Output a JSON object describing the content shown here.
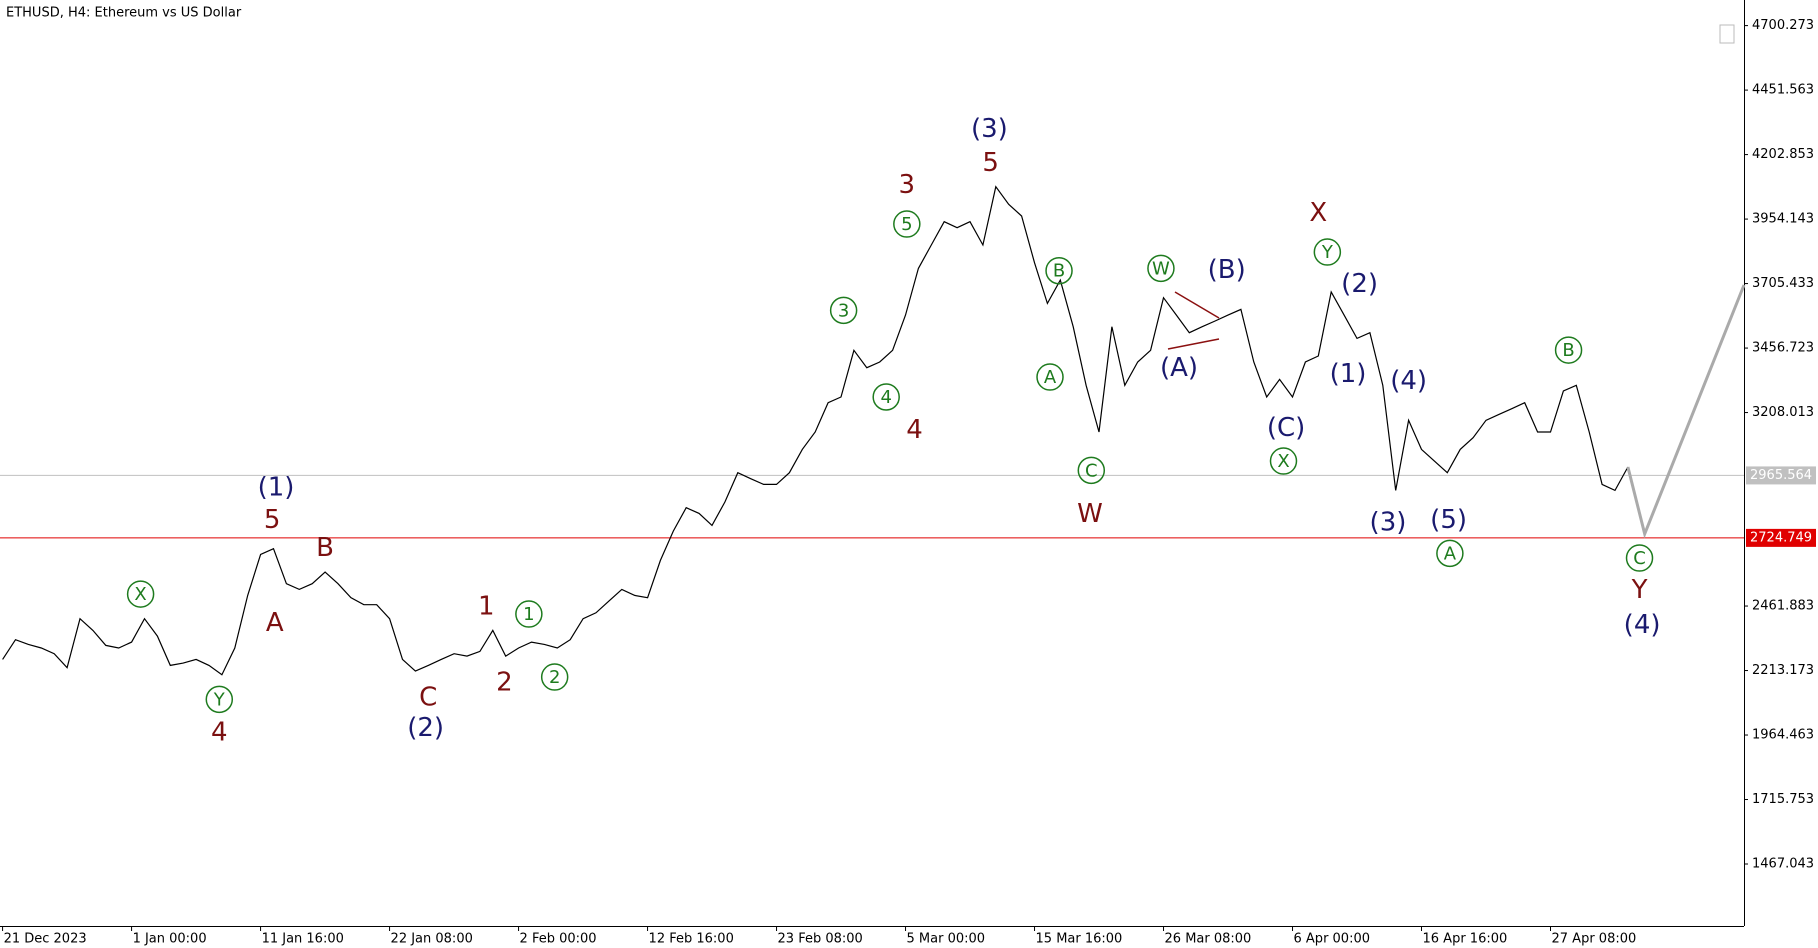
{
  "chart_data": {
    "type": "line",
    "title": "ETHUSD, H4:  Ethereum vs US Dollar",
    "xlim": [
      -0.02,
      13.5
    ],
    "xticks": [
      {
        "value": 0,
        "label": "21 Dec 2023"
      },
      {
        "value": 1,
        "label": "1 Jan 00:00"
      },
      {
        "value": 2,
        "label": "11 Jan 16:00"
      },
      {
        "value": 3,
        "label": "22 Jan 08:00"
      },
      {
        "value": 4,
        "label": "2 Feb 00:00"
      },
      {
        "value": 5,
        "label": "12 Feb 16:00"
      },
      {
        "value": 6,
        "label": "23 Feb 08:00"
      },
      {
        "value": 7,
        "label": "5 Mar 00:00"
      },
      {
        "value": 8,
        "label": "15 Mar 16:00"
      },
      {
        "value": 9,
        "label": "26 Mar 08:00"
      },
      {
        "value": 10,
        "label": "6 Apr 00:00"
      },
      {
        "value": 11,
        "label": "16 Apr 16:00"
      },
      {
        "value": 12,
        "label": "27 Apr 08:00"
      }
    ],
    "ylim": [
      1228,
      4799
    ],
    "yticks": [
      4700.273,
      4451.563,
      4202.853,
      3954.143,
      3705.433,
      3456.723,
      3208.013,
      2461.883,
      2213.173,
      1964.463,
      1715.753,
      1467.043
    ],
    "price_lines": [
      {
        "value": 2965.564,
        "color": "#c0c0c0"
      },
      {
        "value": 2724.749,
        "color": "#e00000"
      }
    ],
    "x": [
      0,
      0.1,
      0.2,
      0.3,
      0.4,
      0.5,
      0.6,
      0.7,
      0.8,
      0.9,
      1,
      1.1,
      1.2,
      1.3,
      1.4,
      1.5,
      1.6,
      1.7,
      1.8,
      1.9,
      2,
      2.1,
      2.2,
      2.3,
      2.4,
      2.5,
      2.6,
      2.7,
      2.8,
      2.9,
      3,
      3.1,
      3.2,
      3.3,
      3.4,
      3.5,
      3.6,
      3.7,
      3.8,
      3.9,
      4,
      4.1,
      4.2,
      4.3,
      4.4,
      4.5,
      4.6,
      4.7,
      4.8,
      4.9,
      5,
      5.1,
      5.2,
      5.3,
      5.4,
      5.5,
      5.6,
      5.7,
      5.8,
      5.9,
      6,
      6.1,
      6.2,
      6.3,
      6.4,
      6.5,
      6.6,
      6.7,
      6.8,
      6.9,
      7,
      7.1,
      7.2,
      7.3,
      7.4,
      7.5,
      7.6,
      7.7,
      7.8,
      7.9,
      8,
      8.1,
      8.2,
      8.3,
      8.4,
      8.5,
      8.6,
      8.7,
      8.8,
      8.9,
      9,
      9.1,
      9.2,
      9.3,
      9.4,
      9.5,
      9.6,
      9.7,
      9.8,
      9.9,
      10,
      10.1,
      10.2,
      10.3,
      10.4,
      10.5,
      10.6,
      10.7,
      10.8,
      10.9,
      11,
      11.1,
      11.2,
      11.3,
      11.4,
      11.5,
      11.6,
      11.7,
      11.8,
      11.9,
      12,
      12.1,
      12.2,
      12.3,
      12.4,
      12.5,
      12.6
    ],
    "series": [
      {
        "color": "#000000",
        "values": [
          2256,
          2332,
          2314,
          2300,
          2278,
          2224,
          2413,
          2368,
          2310,
          2300,
          2323,
          2413,
          2346,
          2233,
          2242,
          2256,
          2233,
          2197,
          2300,
          2503,
          2661,
          2683,
          2548,
          2526,
          2548,
          2593,
          2548,
          2494,
          2467,
          2467,
          2413,
          2256,
          2211,
          2233,
          2256,
          2278,
          2269,
          2287,
          2368,
          2269,
          2300,
          2323,
          2314,
          2300,
          2332,
          2413,
          2436,
          2481,
          2526,
          2503,
          2494,
          2638,
          2751,
          2841,
          2819,
          2773,
          2863,
          2976,
          2953,
          2931,
          2931,
          2976,
          3066,
          3133,
          3246,
          3268,
          3448,
          3381,
          3403,
          3448,
          3584,
          3764,
          3854,
          3944,
          3921,
          3944,
          3854,
          4079,
          4011,
          3966,
          3786,
          3629,
          3719,
          3539,
          3313,
          3133,
          3539,
          3313,
          3403,
          3448,
          3651,
          3584,
          3516,
          3539,
          3561,
          3584,
          3606,
          3403,
          3268,
          3336,
          3268,
          3403,
          3426,
          3673,
          3584,
          3494,
          3516,
          3313,
          2908,
          3178,
          3066,
          3021,
          2976,
          3066,
          3111,
          3178,
          3201,
          3223,
          3246,
          3133,
          3133,
          3291,
          3313,
          3133,
          2931,
          2908,
          2998
        ]
      }
    ],
    "projection": {
      "color": "#aaaaaa",
      "x": [
        12.6,
        12.73,
        13.5
      ],
      "values": [
        2998,
        2740,
        3700
      ]
    },
    "annotations": [
      {
        "text": "(1)",
        "x": 2.12,
        "y": 2917,
        "color": "#1a1a6e"
      },
      {
        "text": "5",
        "x": 2.09,
        "y": 2791,
        "color": "#7b1010"
      },
      {
        "text": "A",
        "x": 2.11,
        "y": 2395,
        "color": "#7b1010"
      },
      {
        "text": "B",
        "x": 2.5,
        "y": 2683,
        "color": "#7b1010"
      },
      {
        "text": "X",
        "x": 1.07,
        "y": 2508,
        "color": "#1e7b1e",
        "circle": true
      },
      {
        "text": "Y",
        "x": 1.68,
        "y": 2102,
        "color": "#1e7b1e",
        "circle": true
      },
      {
        "text": "4",
        "x": 1.68,
        "y": 1972,
        "color": "#7b1010"
      },
      {
        "text": "C",
        "x": 3.3,
        "y": 2107,
        "color": "#7b1010"
      },
      {
        "text": "(2)",
        "x": 3.28,
        "y": 1990,
        "color": "#1a1a6e"
      },
      {
        "text": "1",
        "x": 3.75,
        "y": 2458,
        "color": "#7b1010"
      },
      {
        "text": "2",
        "x": 3.89,
        "y": 2165,
        "color": "#7b1010"
      },
      {
        "text": "1",
        "x": 4.08,
        "y": 2431,
        "color": "#1e7b1e",
        "circle": true
      },
      {
        "text": "2",
        "x": 4.28,
        "y": 2188,
        "color": "#1e7b1e",
        "circle": true
      },
      {
        "text": "3",
        "x": 6.52,
        "y": 3602,
        "color": "#1e7b1e",
        "circle": true
      },
      {
        "text": "4",
        "x": 6.85,
        "y": 3268,
        "color": "#1e7b1e",
        "circle": true
      },
      {
        "text": "5",
        "x": 7.01,
        "y": 3935,
        "color": "#1e7b1e",
        "circle": true
      },
      {
        "text": "3",
        "x": 7.01,
        "y": 4083,
        "color": "#7b1010"
      },
      {
        "text": "4",
        "x": 7.07,
        "y": 3138,
        "color": "#7b1010"
      },
      {
        "text": "(3)",
        "x": 7.65,
        "y": 4300,
        "color": "#1a1a6e"
      },
      {
        "text": "5",
        "x": 7.66,
        "y": 4169,
        "color": "#7b1010"
      },
      {
        "text": "B",
        "x": 8.19,
        "y": 3755,
        "color": "#1e7b1e",
        "circle": true
      },
      {
        "text": "A",
        "x": 8.12,
        "y": 3345,
        "color": "#1e7b1e",
        "circle": true
      },
      {
        "text": "C",
        "x": 8.44,
        "y": 2985,
        "color": "#1e7b1e",
        "circle": true
      },
      {
        "text": "W",
        "x": 8.43,
        "y": 2814,
        "color": "#7b1010"
      },
      {
        "text": "W",
        "x": 8.98,
        "y": 3764,
        "color": "#1e7b1e",
        "circle": true
      },
      {
        "text": "(A)",
        "x": 9.12,
        "y": 3377,
        "color": "#1a1a6e"
      },
      {
        "text": "(B)",
        "x": 9.49,
        "y": 3755,
        "color": "#1a1a6e"
      },
      {
        "text": "(C)",
        "x": 9.95,
        "y": 3147,
        "color": "#1a1a6e"
      },
      {
        "text": "X",
        "x": 9.93,
        "y": 3021,
        "color": "#1e7b1e",
        "circle": true
      },
      {
        "text": "X",
        "x": 10.2,
        "y": 3975,
        "color": "#7b1010"
      },
      {
        "text": "Y",
        "x": 10.27,
        "y": 3827,
        "color": "#1e7b1e",
        "circle": true
      },
      {
        "text": "(2)",
        "x": 10.52,
        "y": 3701,
        "color": "#1a1a6e"
      },
      {
        "text": "(1)",
        "x": 10.43,
        "y": 3354,
        "color": "#1a1a6e"
      },
      {
        "text": "(4)",
        "x": 10.9,
        "y": 3327,
        "color": "#1a1a6e"
      },
      {
        "text": "(3)",
        "x": 10.74,
        "y": 2782,
        "color": "#1a1a6e"
      },
      {
        "text": "(5)",
        "x": 11.21,
        "y": 2791,
        "color": "#1a1a6e"
      },
      {
        "text": "A",
        "x": 11.22,
        "y": 2665,
        "color": "#1e7b1e",
        "circle": true
      },
      {
        "text": "B",
        "x": 12.14,
        "y": 3449,
        "color": "#1e7b1e",
        "circle": true
      },
      {
        "text": "C",
        "x": 12.69,
        "y": 2647,
        "color": "#1e7b1e",
        "circle": true
      },
      {
        "text": "Y",
        "x": 12.69,
        "y": 2521,
        "color": "#7b1010"
      },
      {
        "text": "(4)",
        "x": 12.71,
        "y": 2386,
        "color": "#1a1a6e"
      }
    ]
  }
}
